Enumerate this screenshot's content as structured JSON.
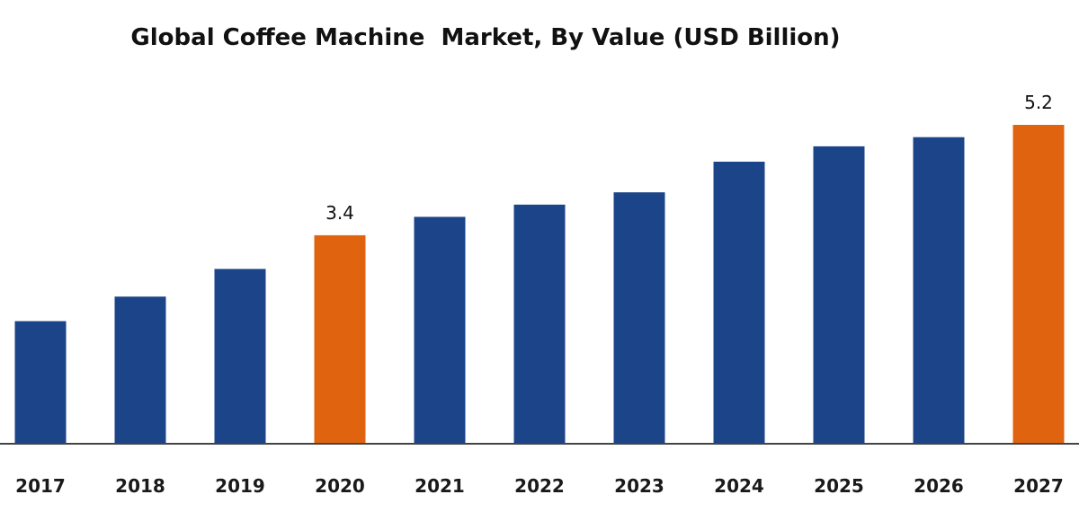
{
  "chart_data": {
    "type": "bar",
    "title": "Global Coffee Machine  Market, By Value (USD Billion)",
    "xlabel": "",
    "ylabel": "",
    "categories": [
      "2017",
      "2018",
      "2019",
      "2020",
      "2021",
      "2022",
      "2023",
      "2024",
      "2025",
      "2026",
      "2027"
    ],
    "values": [
      2.0,
      2.4,
      2.85,
      3.4,
      3.7,
      3.9,
      4.1,
      4.6,
      4.85,
      5.0,
      5.2
    ],
    "data_labels": [
      null,
      null,
      null,
      "3.4",
      null,
      null,
      null,
      null,
      null,
      null,
      "5.2"
    ],
    "highlighted": [
      false,
      false,
      false,
      true,
      false,
      false,
      false,
      false,
      false,
      false,
      true
    ],
    "ylim": [
      0,
      5.2
    ],
    "grid": false,
    "legend": "none",
    "colors": {
      "default_bar": "#1b4489",
      "highlight_bar": "#e0640f",
      "axis": "#444444"
    }
  }
}
